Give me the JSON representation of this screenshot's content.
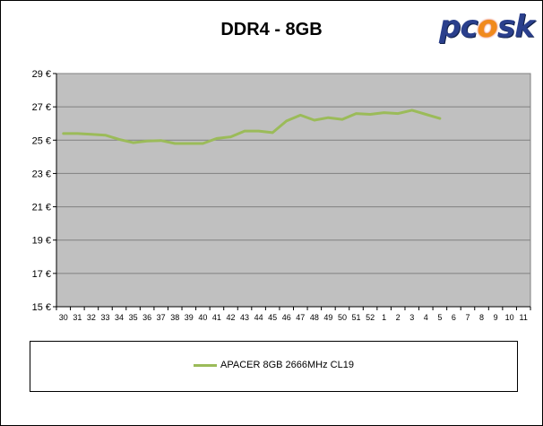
{
  "chart_data": {
    "type": "line",
    "title": "DDR4 - 8GB",
    "categories": [
      "30",
      "31",
      "32",
      "33",
      "34",
      "35",
      "36",
      "37",
      "38",
      "39",
      "40",
      "41",
      "42",
      "43",
      "44",
      "45",
      "46",
      "47",
      "48",
      "49",
      "50",
      "51",
      "52",
      "1",
      "2",
      "3",
      "4",
      "5",
      "6",
      "7",
      "8",
      "9",
      "10",
      "11"
    ],
    "y_ticks": [
      "15 €",
      "17 €",
      "19 €",
      "21 €",
      "23 €",
      "25 €",
      "27 €",
      "29 €"
    ],
    "ylim": [
      15,
      29
    ],
    "grid": true,
    "legend_position": "bottom",
    "series": [
      {
        "name": "APACER 8GB 2666MHz CL19",
        "color": "#9bbb59",
        "values": [
          25.4,
          25.4,
          25.35,
          25.3,
          25.05,
          24.85,
          24.95,
          24.98,
          24.8,
          24.8,
          24.8,
          25.1,
          25.2,
          25.55,
          25.55,
          25.45,
          26.15,
          26.5,
          26.2,
          26.35,
          26.25,
          26.6,
          26.55,
          26.65,
          26.6,
          26.8,
          26.55,
          26.3,
          null,
          null,
          null,
          null,
          null,
          null
        ]
      }
    ]
  },
  "logo": {
    "text_pc": "pc",
    "text_o": "o",
    "text_sk": "sk"
  },
  "colors": {
    "plot_bg": "#c0c0c0",
    "outer_bg": "#ffffff",
    "grid": "#808080"
  }
}
